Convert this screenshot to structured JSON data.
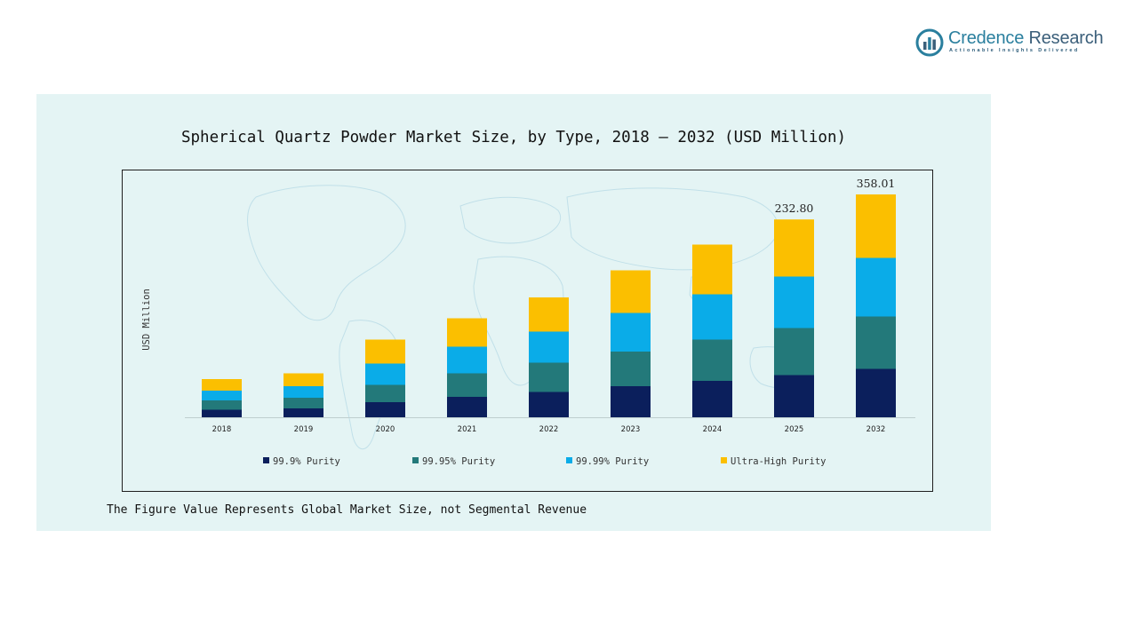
{
  "brand": {
    "name_part1": "Credence",
    "name_part2": " Research",
    "tagline": "Actionable Insights Delivered",
    "icon": "bar-chart-circle-icon",
    "color": "#2a7f9e"
  },
  "chart_data": {
    "type": "bar",
    "stacked": true,
    "title": "Spherical Quartz Powder Market Size, by Type, 2018 – 2032 (USD Million)",
    "xlabel": "",
    "ylabel": "USD Million",
    "categories": [
      "2018",
      "2019",
      "2020",
      "2021",
      "2022",
      "2023",
      "2024",
      "2025",
      "2032"
    ],
    "series": [
      {
        "name": "99.9% Purity",
        "color": "#0b1f5c",
        "values": [
          8.5,
          10,
          17,
          23,
          28.5,
          35,
          41,
          47.5,
          54.5
        ]
      },
      {
        "name": "99.95% Purity",
        "color": "#23797a",
        "values": [
          10.5,
          12,
          19.5,
          26.5,
          33,
          39,
          46.5,
          53,
          59
        ]
      },
      {
        "name": "99.99% Purity",
        "color": "#0aace8",
        "values": [
          11,
          13,
          24,
          30,
          35,
          43.5,
          51,
          58,
          66
        ]
      },
      {
        "name": "Ultra-High Purity",
        "color": "#fbbf00",
        "values": [
          13,
          14.5,
          27,
          32,
          38.5,
          48,
          56,
          64.3,
          71.5
        ]
      }
    ],
    "data_labels": [
      {
        "category": "2025",
        "text": "232.80"
      },
      {
        "category": "2032",
        "text": "358.01"
      }
    ],
    "ylim": [
      0,
      260
    ],
    "grid": false,
    "legend_position": "bottom"
  },
  "footnote": "The Figure Value Represents Global Market Size, not Segmental Revenue"
}
